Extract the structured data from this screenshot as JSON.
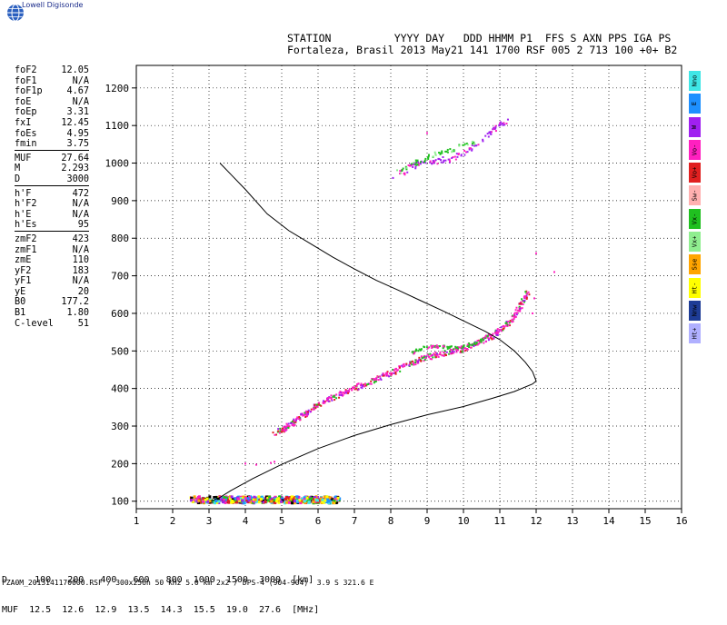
{
  "brand": "Lowell Digisonde",
  "header": {
    "line1": "STATION          YYYY DAY   DDD HHMM P1  FFS S AXN PPS IGA PS",
    "line2": "Fortaleza, Brasil 2013 May21 141 1700 RSF 005 2 713 100 +0+ B2"
  },
  "params_group1": [
    {
      "name": "foF2",
      "value": "12.05"
    },
    {
      "name": "foF1",
      "value": "N/A"
    },
    {
      "name": "foF1p",
      "value": "4.67"
    },
    {
      "name": "foE",
      "value": "N/A"
    },
    {
      "name": "foEp",
      "value": "3.31"
    },
    {
      "name": "fxI",
      "value": "12.45"
    },
    {
      "name": "foEs",
      "value": "4.95"
    },
    {
      "name": "fmin",
      "value": "3.75"
    }
  ],
  "params_group2": [
    {
      "name": "MUF",
      "value": "27.64"
    },
    {
      "name": "M",
      "value": "2.293"
    },
    {
      "name": "D",
      "value": "3000"
    }
  ],
  "params_group3": [
    {
      "name": "h'F",
      "value": "472"
    },
    {
      "name": "h'F2",
      "value": "N/A"
    },
    {
      "name": "h'E",
      "value": "N/A"
    },
    {
      "name": "h'Es",
      "value": "95"
    }
  ],
  "params_group4": [
    {
      "name": "zmF2",
      "value": "423"
    },
    {
      "name": "zmF1",
      "value": "N/A"
    },
    {
      "name": "zmE",
      "value": "110"
    },
    {
      "name": "yF2",
      "value": "183"
    },
    {
      "name": "yF1",
      "value": "N/A"
    },
    {
      "name": "yE",
      "value": "20"
    },
    {
      "name": "B0",
      "value": "177.2"
    },
    {
      "name": "B1",
      "value": "1.80"
    },
    {
      "name": "C-level",
      "value": "51"
    }
  ],
  "legend": [
    {
      "label": "Nno",
      "color": "#3fe6e6"
    },
    {
      "label": "E",
      "color": "#1e90ff"
    },
    {
      "label": "W",
      "color": "#a020f0"
    },
    {
      "label": "Vo-",
      "color": "#ff20c0"
    },
    {
      "label": "Vo+",
      "color": "#e02020"
    },
    {
      "label": "Sw-",
      "color": "#ffb0b0"
    },
    {
      "label": "Vx-",
      "color": "#20c020"
    },
    {
      "label": "Vx+",
      "color": "#90ee90"
    },
    {
      "label": "Sse",
      "color": "#ffa500"
    },
    {
      "label": "Ht-",
      "color": "#ffff00"
    },
    {
      "label": "Nnw",
      "color": "#1e3c96"
    },
    {
      "label": "Ht+",
      "color": "#b0b0ff"
    }
  ],
  "muf_table": {
    "d_line": "D     100   200   400   600   800  1000  1500  3000  [km]",
    "muf_line": "MUF  12.5  12.6  12.9  13.5  14.3  15.5  19.0  27.6  [MHz]"
  },
  "footer": "FZA0M_2013141170000.RSF / 300x256h 50 kHz 5.0 km 2x2 / DPS-4 (904-904)  3.9 S 321.6 E",
  "chart_data": {
    "type": "scatter",
    "x_ticks": [
      "1",
      "2",
      "3",
      "4",
      "5",
      "6",
      "7",
      "8",
      "9",
      "10",
      "11",
      "12",
      "13",
      "14",
      "15",
      "16"
    ],
    "y_ticks": [
      "100",
      "200",
      "300",
      "400",
      "500",
      "600",
      "700",
      "800",
      "900",
      "1000",
      "1100",
      "1200"
    ],
    "xlim": [
      1,
      16
    ],
    "ylim": [
      80,
      1260
    ],
    "grid": true,
    "profile_curve": [
      [
        3.3,
        1000
      ],
      [
        4.0,
        930
      ],
      [
        4.6,
        865
      ],
      [
        5.2,
        820
      ],
      [
        5.8,
        785
      ],
      [
        6.4,
        750
      ],
      [
        7.0,
        718
      ],
      [
        7.6,
        688
      ],
      [
        8.2,
        662
      ],
      [
        8.8,
        635
      ],
      [
        9.4,
        608
      ],
      [
        10.0,
        580
      ],
      [
        10.6,
        552
      ],
      [
        11.0,
        530
      ],
      [
        11.4,
        500
      ],
      [
        11.7,
        470
      ],
      [
        11.9,
        445
      ],
      [
        12.0,
        420
      ],
      [
        11.9,
        412
      ],
      [
        11.4,
        392
      ],
      [
        10.8,
        374
      ],
      [
        10.0,
        352
      ],
      [
        9.0,
        330
      ],
      [
        8.0,
        304
      ],
      [
        7.0,
        275
      ],
      [
        6.0,
        240
      ],
      [
        5.0,
        198
      ],
      [
        4.2,
        160
      ],
      [
        3.6,
        128
      ],
      [
        3.3,
        110
      ],
      [
        3.05,
        100
      ]
    ],
    "F_trace": [
      [
        4.8,
        280
      ],
      [
        5.1,
        295
      ],
      [
        5.4,
        315
      ],
      [
        5.7,
        335
      ],
      [
        6.0,
        355
      ],
      [
        6.4,
        375
      ],
      [
        6.8,
        392
      ],
      [
        7.2,
        408
      ],
      [
        7.6,
        425
      ],
      [
        8.0,
        440
      ],
      [
        8.4,
        460
      ],
      [
        8.8,
        478
      ],
      [
        9.2,
        488
      ],
      [
        9.6,
        495
      ],
      [
        10.0,
        505
      ],
      [
        10.4,
        520
      ],
      [
        10.8,
        540
      ],
      [
        11.1,
        560
      ],
      [
        11.4,
        590
      ],
      [
        11.6,
        625
      ],
      [
        11.8,
        660
      ]
    ],
    "F_green_trace": [
      [
        8.6,
        495
      ],
      [
        8.9,
        508
      ],
      [
        9.2,
        512
      ],
      [
        9.5,
        510
      ],
      [
        9.8,
        508
      ],
      [
        10.1,
        515
      ],
      [
        10.4,
        525
      ],
      [
        10.7,
        540
      ]
    ],
    "F_echo_pink": [
      [
        8.1,
        960
      ],
      [
        8.4,
        980
      ],
      [
        8.7,
        995
      ],
      [
        9.0,
        1000
      ],
      [
        9.3,
        1005
      ],
      [
        9.6,
        1010
      ],
      [
        9.9,
        1020
      ],
      [
        10.2,
        1040
      ],
      [
        10.5,
        1060
      ],
      [
        10.8,
        1085
      ],
      [
        11.0,
        1100
      ],
      [
        11.2,
        1112
      ]
    ],
    "F_echo_green": [
      [
        8.2,
        975
      ],
      [
        8.5,
        990
      ],
      [
        8.8,
        1005
      ],
      [
        9.1,
        1020
      ],
      [
        9.4,
        1030
      ],
      [
        9.7,
        1035
      ],
      [
        10.0,
        1045
      ],
      [
        10.3,
        1055
      ]
    ],
    "Es_cluster_x": [
      2.5,
      6.6
    ],
    "Es_cluster_y": [
      95,
      112
    ],
    "sparse_points": [
      [
        4.0,
        200
      ],
      [
        4.3,
        197
      ],
      [
        4.7,
        202
      ],
      [
        4.8,
        205
      ],
      [
        11.9,
        600
      ],
      [
        11.95,
        640
      ],
      [
        12.5,
        710
      ],
      [
        12.0,
        760
      ],
      [
        9.0,
        1080
      ]
    ]
  }
}
